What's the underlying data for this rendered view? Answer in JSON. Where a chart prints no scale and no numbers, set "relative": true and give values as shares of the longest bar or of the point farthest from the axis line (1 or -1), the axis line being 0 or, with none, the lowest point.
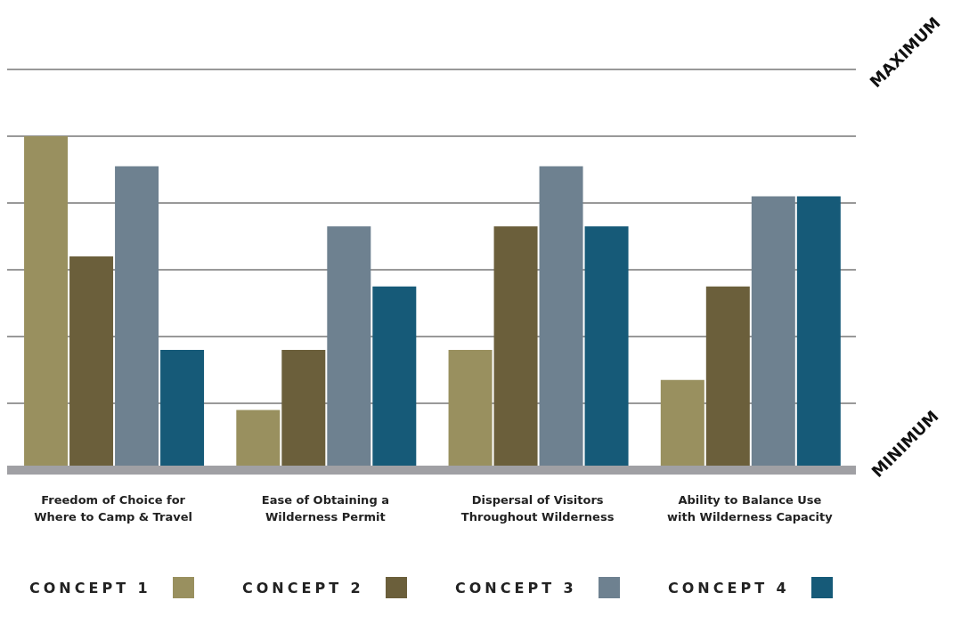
{
  "chart_data": {
    "type": "bar",
    "categories": [
      "Freedom of Choice for Where to Camp & Travel",
      "Ease of Obtaining a Wilderness Permit",
      "Dispersal of Visitors Throughout Wilderness",
      "Ability to Balance Use with Wilderness Capacity"
    ],
    "series": [
      {
        "name": "CONCEPT 1",
        "color": "#99905f",
        "values": [
          1,
          0.18,
          0.36,
          0.27
        ]
      },
      {
        "name": "CONCEPT 2",
        "color": "#6b5f3b",
        "values": [
          0.64,
          0.36,
          0.73,
          0.55
        ]
      },
      {
        "name": "CONCEPT 3",
        "color": "#6e8190",
        "values": [
          0.91,
          0.73,
          0.91,
          0.82
        ]
      },
      {
        "name": "CONCEPT 4",
        "color": "#165a78",
        "values": [
          0.36,
          0.55,
          0.73,
          0.82
        ]
      }
    ],
    "relative": true,
    "annotations": [
      "MAXIMUM",
      "MINIMUM"
    ],
    "grid": "y",
    "legend": "bottom"
  }
}
